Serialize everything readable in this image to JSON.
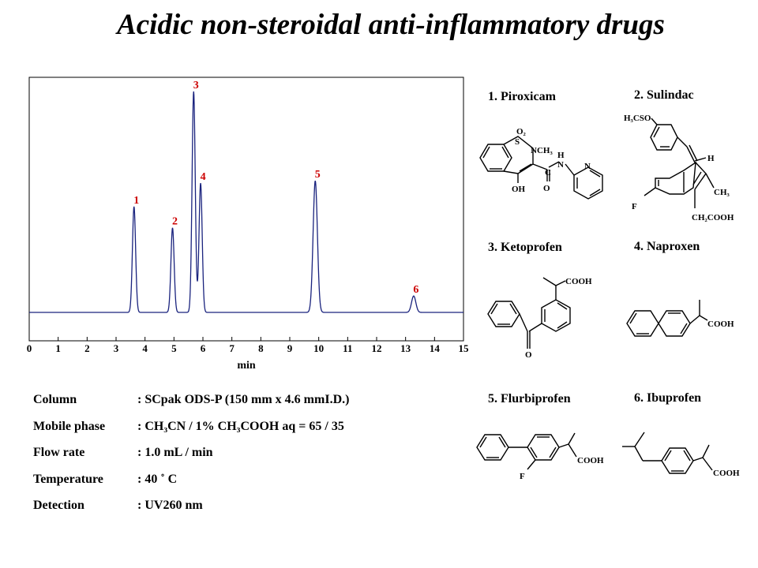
{
  "title": "Acidic non-steroidal anti-inflammatory drugs",
  "chart_data": {
    "type": "line",
    "xlabel": "min",
    "xlim": [
      0,
      15
    ],
    "x_ticks": [
      0,
      1,
      2,
      3,
      4,
      5,
      6,
      7,
      8,
      9,
      10,
      11,
      12,
      13,
      14,
      15
    ],
    "grid": false,
    "line_color": "#1a237e",
    "label_color": "#cc0000",
    "peaks": [
      {
        "label": "1",
        "retention_time": 3.62,
        "relative_height": 0.45
      },
      {
        "label": "2",
        "retention_time": 4.95,
        "relative_height": 0.36
      },
      {
        "label": "3",
        "retention_time": 5.68,
        "relative_height": 0.94
      },
      {
        "label": "4",
        "retention_time": 5.92,
        "relative_height": 0.55
      },
      {
        "label": "5",
        "retention_time": 9.88,
        "relative_height": 0.56
      },
      {
        "label": "6",
        "retention_time": 13.28,
        "relative_height": 0.07
      }
    ]
  },
  "conditions": [
    {
      "label": "Column",
      "value": ": SCpak ODS-P   (150 mm x 4.6 mmI.D.)"
    },
    {
      "label": "Mobile phase",
      "value": ": CH₃CN / 1% CH₃COOH aq = 65 / 35"
    },
    {
      "label": "Flow rate",
      "value": ": 1.0 mL / min"
    },
    {
      "label": "Temperature",
      "value": ": 40 ˚ C"
    },
    {
      "label": "Detection",
      "value": ": UV260 nm"
    }
  ],
  "drugs": [
    {
      "name": "1. Piroxicam",
      "atoms": {
        "o2": "O₂",
        "s": "S",
        "nch3": "NCH₃",
        "h": "H",
        "n": "N",
        "c": "C",
        "n2": "N",
        "oh": "OH",
        "o": "O"
      }
    },
    {
      "name": "2. Sulindac",
      "atoms": {
        "h3cso": "H₃CSO",
        "h": "H",
        "ch3": "CH₃",
        "f": "F",
        "ch2cooh": "CH₂COOH"
      }
    },
    {
      "name": "3. Ketoprofen",
      "atoms": {
        "cooh": "COOH",
        "o": "O"
      }
    },
    {
      "name": "4. Naproxen",
      "atoms": {
        "cooh": "COOH"
      }
    },
    {
      "name": "5. Flurbiprofen",
      "atoms": {
        "f": "F",
        "cooh": "COOH"
      }
    },
    {
      "name": "6. Ibuprofen",
      "atoms": {
        "cooh": "COOH"
      }
    }
  ]
}
